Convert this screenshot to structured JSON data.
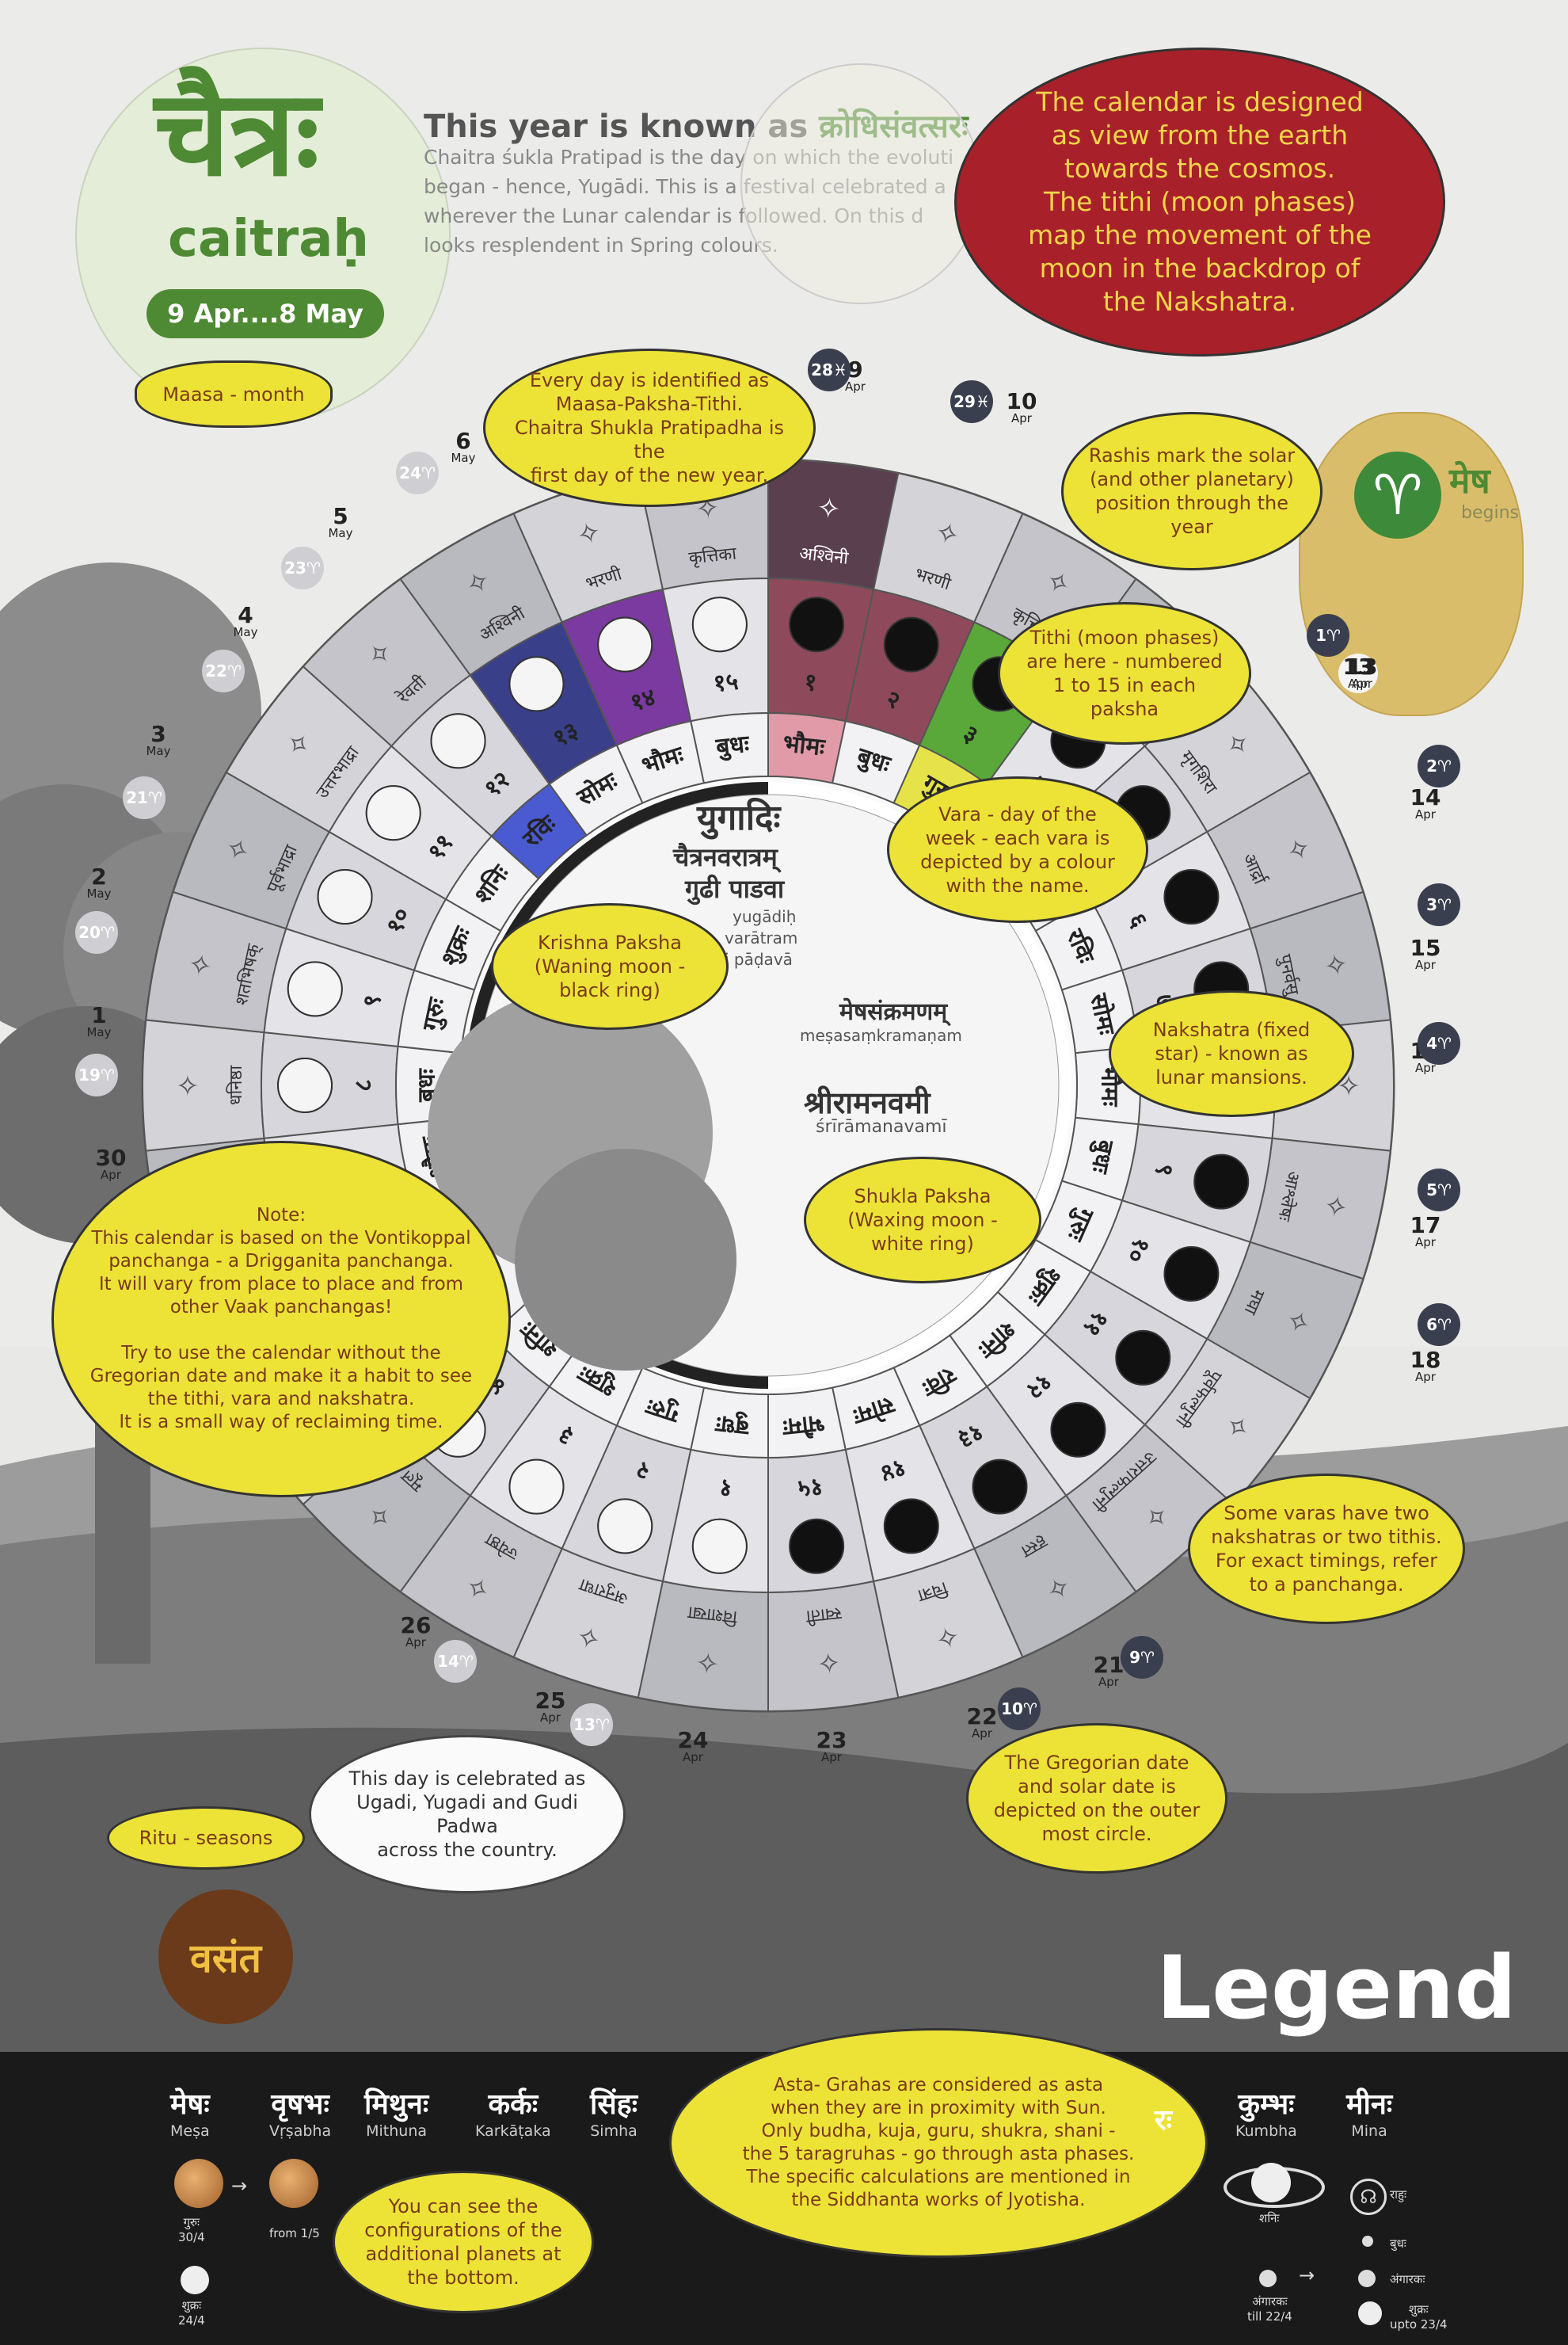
{
  "header": {
    "month_devanagari": "चैत्रः",
    "month_latin": "caitraḥ",
    "date_range": "9 Apr....8 May",
    "year_label": "This year is known as",
    "year_name": "क्रोधिसंवत्सरः",
    "intro_text": "Chaitra śukla Pratipad is the day on which the evoluti began - hence, Yugādi. This is a festival celebrated a wherever the Lunar calendar is followed. On this d looks resplendent in Spring colours.",
    "maasa_note": "Maasa - month"
  },
  "red_bubble": "The calendar is designed\nas view from the earth\ntowards the cosmos.\nThe tithi (moon phases)\nmap the movement of the\nmoon in the backdrop of\nthe Nakshatra.",
  "bubbles": {
    "maasa_paksha": "Every day is identified as\nMaasa-Paksha-Tithi.\nChaitra Shukla Pratipadha is the\nfirst day of the new year.",
    "rashis": "Rashis mark the solar\n(and other planetary)\nposition through the\nyear",
    "tithi": "Tithi (moon phases)\nare here - numbered\n1 to 15 in each paksha",
    "vara": "Vara - day of the\nweek - each vara is\ndepicted by a colour\nwith the name.",
    "krishna": "Krishna Paksha\n(Waning moon -\nblack ring)",
    "nakshatra": "Nakshatra (fixed\nstar) - known as\nlunar mansions.",
    "shukla": "Shukla Paksha\n(Waxing moon -\nwhite ring)",
    "note": "Note:\nThis calendar is based on the Vontikoppal\npanchanga - a Drigganita panchanga.\nIt will vary from place to place and from\nother Vaak panchangas!\n\nTry to use the calendar without the\nGregorian date and make it a habit to see\nthe tithi, vara and nakshatra.\nIt is a small way of reclaiming time.",
    "some_varas": "Some varas have two\nnakshatras or two tithis.\nFor exact timings, refer\nto a panchanga.",
    "gregorian": "The Gregorian date\nand solar date is\ndepicted on the outer\nmost circle.",
    "ugadi": "This day is celebrated as\nUgadi, Yugadi and Gudi Padwa\nacross the country.",
    "ritu": "Ritu - seasons",
    "asta": "Asta- Grahas are considered as asta\nwhen they are in proximity with Sun.\nOnly budha, kuja, guru, shukra, shani -\nthe 5 taragruhas - go through asta phases.\nThe specific calculations are mentioned in\nthe Siddhanta works of Jyotisha.",
    "configs": "You can see the\nconfigurations of the\nadditional planets at\nthe bottom."
  },
  "center": {
    "festival_1": "युगादिः",
    "festival_2": "चैत्रनवरात्रम्",
    "festival_3": "गुढी पाडवा",
    "festival_latin_1": "yugādiḥ",
    "festival_latin_2": "varātram",
    "festival_latin_3": "i pāḍavā",
    "sankramana": "मेषसंक्रमणम्",
    "sankramana_latin": "meṣasaṃkramaṇam",
    "ramanavami": "श्रीरामनवमी",
    "ramanavami_latin": "śrīrāmanavamī"
  },
  "mesha": {
    "name": "मेष",
    "begins": "begins",
    "solar": "1♈",
    "day": "13",
    "month": "Apr"
  },
  "ritu_name": "वसंत",
  "legend_title": "Legend",
  "wheel": {
    "vara_ring": [
      "भौमः",
      "बुधः",
      "गुरुः",
      "शुक्रः",
      "शनिः",
      "रविः",
      "सोमः",
      "भौमः",
      "बुधः",
      "गुरुः",
      "शुक्रः",
      "शनिः",
      "रविः",
      "सोमः",
      "भौमः",
      "बुधः",
      "गुरुः",
      "शुक्रः",
      "शनिः",
      "रविः",
      "सोमः",
      "भौमः",
      "बुधः",
      "गुरुः",
      "शुक्रः",
      "शनिः",
      "रविः",
      "सोमः",
      "भौमः",
      "बुधः"
    ],
    "tithi_ring": [
      "१",
      "२",
      "३",
      "४",
      "५",
      "६",
      "७",
      "८",
      "९",
      "१०",
      "११",
      "१२",
      "१३",
      "१४",
      "१५",
      "१",
      "२",
      "३",
      "४",
      "५",
      "६",
      "७",
      "८",
      "९",
      "१०",
      "११",
      "१२",
      "१३",
      "१४",
      "१५"
    ],
    "nakshatras": [
      "अश्विनी",
      "भरणी",
      "कृत्तिका",
      "रोहिणी",
      "मृगशिरा",
      "आर्द्रा",
      "पुनर्वसु",
      "पुष्यम्",
      "आश्लेषः",
      "मघा",
      "पूर्वफल्गुनी",
      "उत्तराफल्गुनी",
      "हस्त",
      "चित्रा",
      "स्वाती",
      "विशाखा",
      "अनुराधा",
      "ज्येष्ठा",
      "मूल",
      "पूर्वाषाढा",
      "उत्तराषाढा",
      "श्रवणः",
      "धनिष्ठा",
      "शतभिषक्",
      "पूर्वभाद्रा",
      "उत्तरभाद्रा",
      "रेवती"
    ]
  },
  "outer_dates": [
    {
      "d": "9",
      "m": "Apr",
      "s": "28♓"
    },
    {
      "d": "10",
      "m": "Apr",
      "s": "29♓"
    },
    {
      "d": "13",
      "m": "Apr",
      "s": "1♈"
    },
    {
      "d": "14",
      "m": "Apr",
      "s": "2♈"
    },
    {
      "d": "15",
      "m": "Apr",
      "s": "3♈"
    },
    {
      "d": "16",
      "m": "Apr",
      "s": "4♈"
    },
    {
      "d": "17",
      "m": "Apr",
      "s": "5♈"
    },
    {
      "d": "18",
      "m": "Apr",
      "s": "6♈"
    },
    {
      "d": "21",
      "m": "Apr",
      "s": "9♈"
    },
    {
      "d": "22",
      "m": "Apr",
      "s": "10♈"
    },
    {
      "d": "23",
      "m": "Apr",
      "s": "11♈"
    },
    {
      "d": "24",
      "m": "Apr",
      "s": "12♈"
    },
    {
      "d": "25",
      "m": "Apr",
      "s": "13♈"
    },
    {
      "d": "26",
      "m": "Apr",
      "s": "14♈"
    },
    {
      "d": "30",
      "m": "Apr",
      "s": ""
    },
    {
      "d": "1",
      "m": "May",
      "s": "19♈"
    },
    {
      "d": "2",
      "m": "May",
      "s": "20♈"
    },
    {
      "d": "3",
      "m": "May",
      "s": "21♈"
    },
    {
      "d": "4",
      "m": "May",
      "s": "22♈"
    },
    {
      "d": "5",
      "m": "May",
      "s": "23♈"
    },
    {
      "d": "6",
      "m": "May",
      "s": "24♈"
    }
  ],
  "legend": {
    "rashis": [
      {
        "dev": "मेषः",
        "lat": "Meṣa"
      },
      {
        "dev": "वृषभः",
        "lat": "Vṛṣabha"
      },
      {
        "dev": "मिथुनः",
        "lat": "Mithuna"
      },
      {
        "dev": "कर्कः",
        "lat": "Karkāṭaka"
      },
      {
        "dev": "सिंहः",
        "lat": "Simha"
      },
      {
        "dev": "कुम्भः",
        "lat": "Kumbha"
      },
      {
        "dev": "मीनः",
        "lat": "Mina"
      }
    ],
    "planet_notes": {
      "guru_1": "गुरुः\n30/4",
      "guru_2": "from 1/5",
      "shukra_left": "शुक्रः\n24/4",
      "shani": "शनिः",
      "rahu": "राहुः",
      "budha": "बुधः",
      "angaraka_1": "अंगारकः\ntill 22/4",
      "angaraka_2": "अंगारकः",
      "shukra_right": "शुक्रः\nupto 23/4",
      "partial_rashi": "रः"
    }
  }
}
